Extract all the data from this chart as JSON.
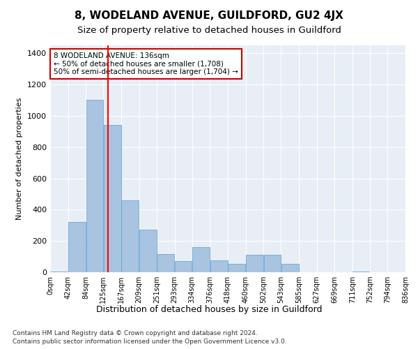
{
  "title": "8, WODELAND AVENUE, GUILDFORD, GU2 4JX",
  "subtitle": "Size of property relative to detached houses in Guildford",
  "xlabel": "Distribution of detached houses by size in Guildford",
  "ylabel": "Number of detached properties",
  "footnote1": "Contains HM Land Registry data © Crown copyright and database right 2024.",
  "footnote2": "Contains public sector information licensed under the Open Government Licence v3.0.",
  "annotation_title": "8 WODELAND AVENUE: 136sqm",
  "annotation_line1": "← 50% of detached houses are smaller (1,708)",
  "annotation_line2": "50% of semi-detached houses are larger (1,704) →",
  "bar_color": "#a8c4e0",
  "bar_edge_color": "#5a9fd4",
  "red_line_x": 136,
  "annotation_box_color": "#ffffff",
  "annotation_box_edge": "#cc0000",
  "background_color": "#e8eef5",
  "categories": [
    "0sqm",
    "42sqm",
    "84sqm",
    "125sqm",
    "167sqm",
    "209sqm",
    "251sqm",
    "293sqm",
    "334sqm",
    "376sqm",
    "418sqm",
    "460sqm",
    "502sqm",
    "543sqm",
    "585sqm",
    "627sqm",
    "669sqm",
    "711sqm",
    "752sqm",
    "794sqm",
    "836sqm"
  ],
  "bin_edges": [
    0,
    42,
    84,
    125,
    167,
    209,
    251,
    293,
    334,
    376,
    418,
    460,
    502,
    543,
    585,
    627,
    669,
    711,
    752,
    794,
    836
  ],
  "bar_heights": [
    5,
    320,
    1100,
    940,
    460,
    270,
    115,
    70,
    160,
    75,
    55,
    110,
    110,
    55,
    0,
    0,
    0,
    5,
    0,
    0,
    0
  ],
  "ylim": [
    0,
    1450
  ],
  "yticks": [
    0,
    200,
    400,
    600,
    800,
    1000,
    1200,
    1400
  ]
}
